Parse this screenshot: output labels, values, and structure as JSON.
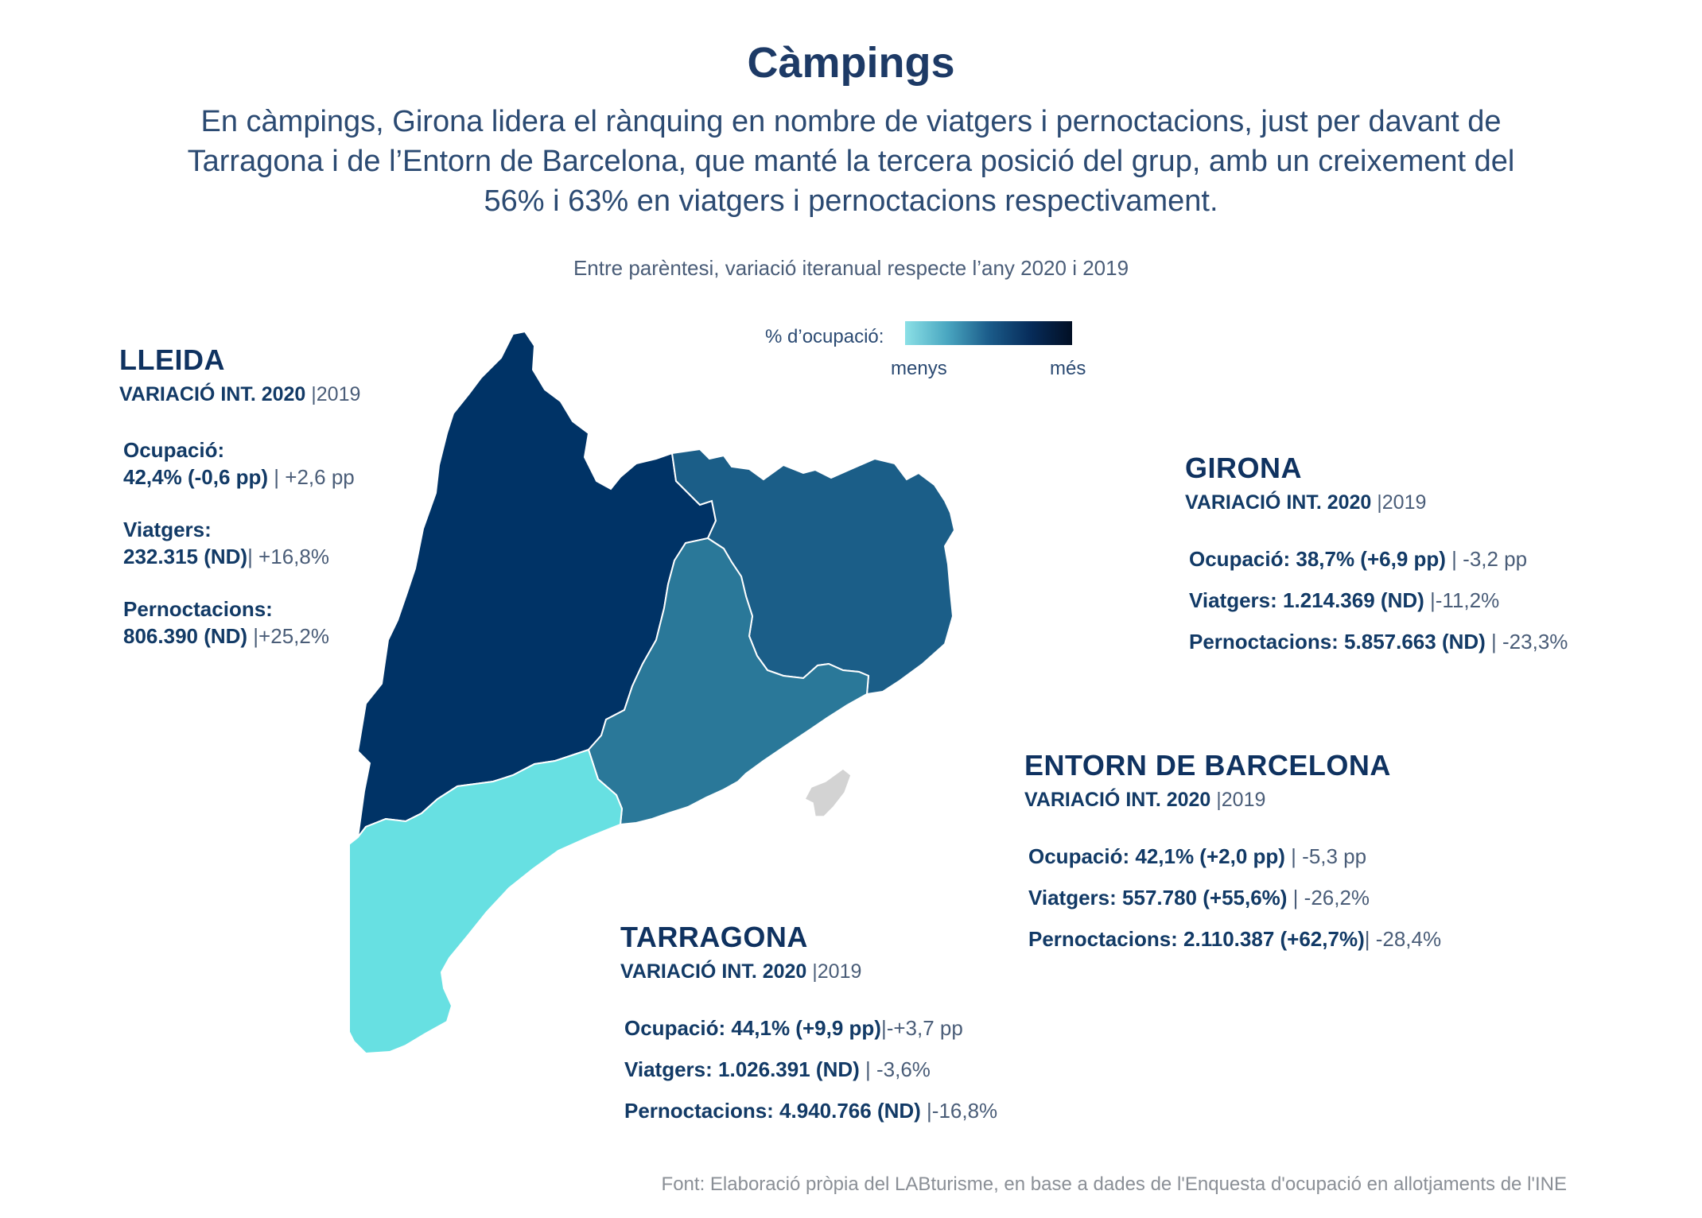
{
  "title": "Càmpings",
  "subtitle": "En càmpings, Girona lidera el rànquing en nombre de viatgers i pernoctacions, just per davant de Tarragona i de l’Entorn de Barcelona, que manté la tercera posició del grup, amb un creixement del 56% i 63% en viatgers i pernoctacions respectivament.",
  "note": "Entre parèntesi, variació iteranual respecte l’any 2020 i 2019",
  "legend": {
    "label": "% d’ocupació:",
    "less": "menys",
    "more": "més"
  },
  "colors": {
    "lleida": "#003366",
    "girona": "#1b5e88",
    "barcelona": "#2a7899",
    "tarragona": "#67e0e2",
    "bcn_city": "#d3d3d3"
  },
  "regions": {
    "lleida": {
      "name": "LLEIDA",
      "var_main": "VARIACIÓ INT. 2020",
      "var_year": "|2019",
      "ocupacio_label": "Ocupació:",
      "ocupacio_value": "42,4% (-0,6 pp)",
      "ocupacio_extra": " | +2,6 pp",
      "viatgers_label": "Viatgers:",
      "viatgers_value": "232.315 (ND)",
      "viatgers_extra": "| +16,8%",
      "pernoct_label": "Pernoctacions:",
      "pernoct_value": "806.390 (ND)",
      "pernoct_extra": " |+25,2%"
    },
    "girona": {
      "name": "GIRONA",
      "var_main": "VARIACIÓ INT. 2020",
      "var_year": " |2019",
      "ocupacio_label": "Ocupació:",
      "ocupacio_value": " 38,7% (+6,9 pp)",
      "ocupacio_extra": " | -3,2 pp",
      "viatgers_label": "Viatgers:",
      "viatgers_value": " 1.214.369 (ND)",
      "viatgers_extra": "  |-11,2%",
      "pernoct_label": "Pernoctacions:",
      "pernoct_value": " 5.857.663 (ND)",
      "pernoct_extra": " | -23,3%"
    },
    "barcelona": {
      "name": "ENTORN DE BARCELONA",
      "var_main": "VARIACIÓ INT. 2020",
      "var_year": " |2019",
      "ocupacio_label": "Ocupació:",
      "ocupacio_value": " 42,1% (+2,0 pp)",
      "ocupacio_extra": " | -5,3 pp",
      "viatgers_label": "Viatgers:",
      "viatgers_value": " 557.780 (+55,6%)",
      "viatgers_extra": " | -26,2%",
      "pernoct_label": "Pernoctacions:",
      "pernoct_value": " 2.110.387 (+62,7%)",
      "pernoct_extra": "| -28,4%"
    },
    "tarragona": {
      "name": "TARRAGONA",
      "var_main": "VARIACIÓ INT. 2020",
      "var_year": " |2019",
      "ocupacio_label": "Ocupació:",
      "ocupacio_value": " 44,1% (+9,9 pp)",
      "ocupacio_extra": "|-+3,7 pp",
      "viatgers_label": "Viatgers:",
      "viatgers_value": " 1.026.391 (ND)",
      "viatgers_extra": " | -3,6%",
      "pernoct_label": "Pernoctacions:",
      "pernoct_value": " 4.940.766 (ND)",
      "pernoct_extra": " |-16,8%"
    }
  },
  "footer": "Font: Elaboració pròpia del LABturisme, en base a dades de l'Enquesta d'ocupació en allotjaments de l'INE"
}
